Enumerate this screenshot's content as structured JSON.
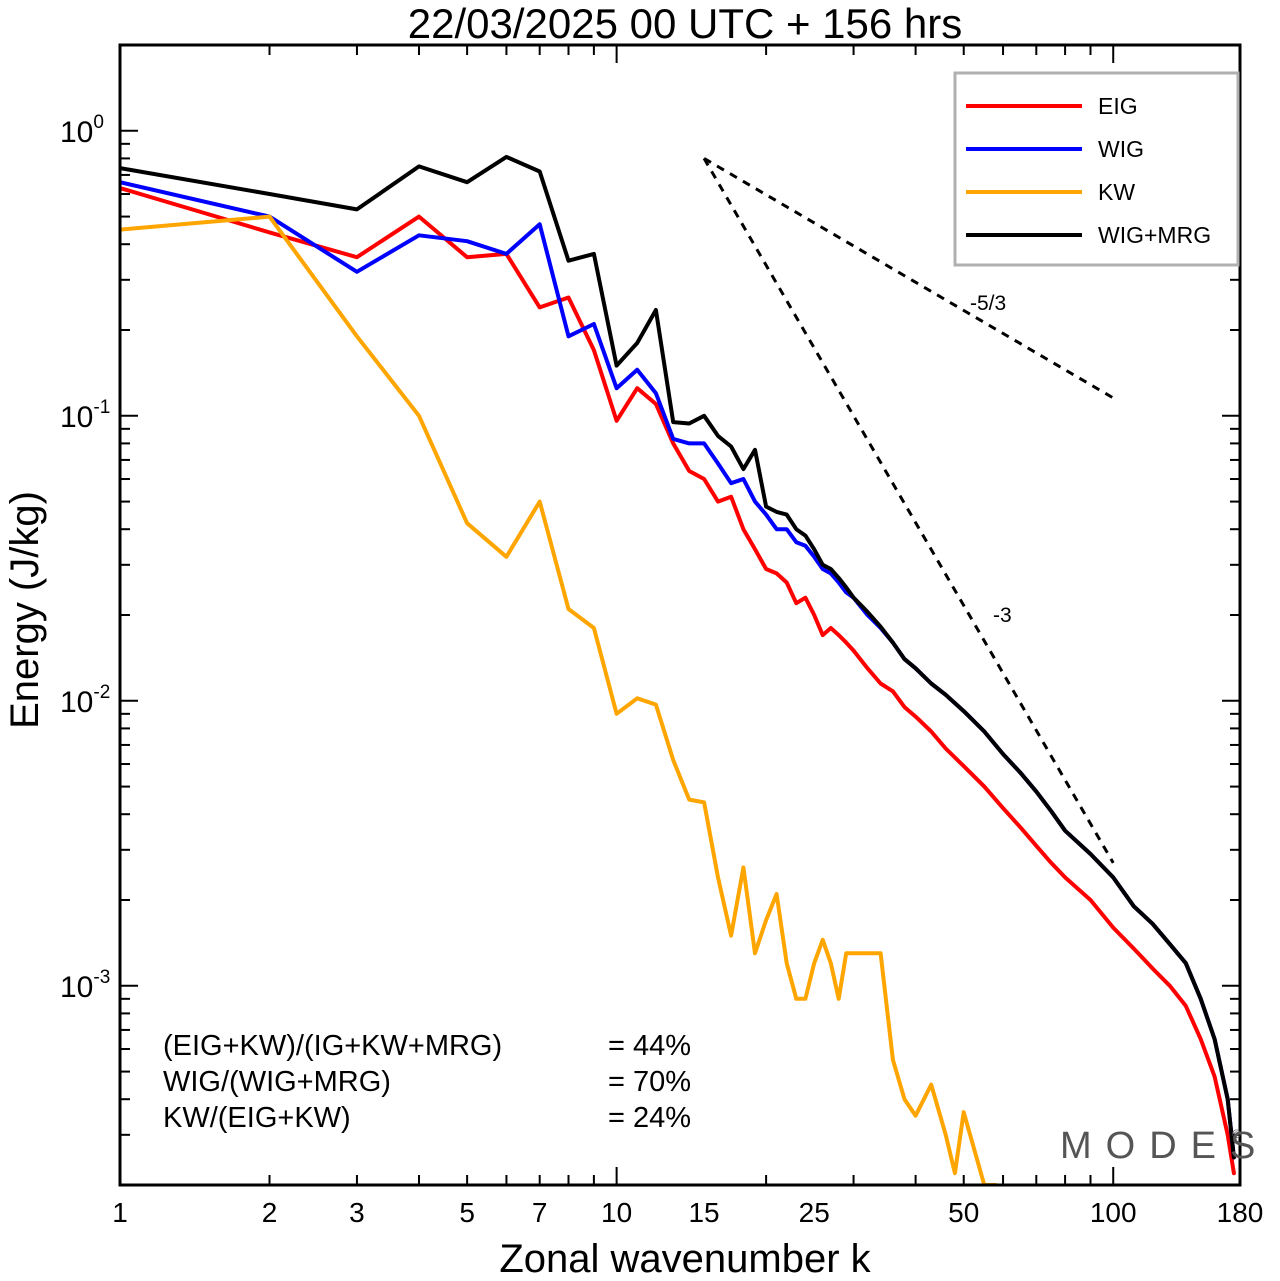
{
  "chart_data": {
    "type": "line",
    "title": "22/03/2025  00 UTC  + 156 hrs",
    "xlabel": "Zonal wavenumber k",
    "ylabel": "Energy (J/kg)",
    "x_scale": "log",
    "y_scale": "log",
    "xlim": [
      1,
      180
    ],
    "ylim": [
      0.0002,
      2
    ],
    "grid": false,
    "legend_position": "top-right",
    "x_ticks": [
      {
        "value": 1,
        "label": "1"
      },
      {
        "value": 2,
        "label": "2"
      },
      {
        "value": 3,
        "label": "3"
      },
      {
        "value": 5,
        "label": "5"
      },
      {
        "value": 7,
        "label": "7"
      },
      {
        "value": 10,
        "label": "10"
      },
      {
        "value": 15,
        "label": "15"
      },
      {
        "value": 25,
        "label": "25"
      },
      {
        "value": 50,
        "label": "50"
      },
      {
        "value": 100,
        "label": "100"
      },
      {
        "value": 180,
        "label": "180"
      }
    ],
    "y_ticks": [
      {
        "value": 1,
        "base": "10",
        "exp": "0"
      },
      {
        "value": 0.1,
        "base": "10",
        "exp": "-1"
      },
      {
        "value": 0.01,
        "base": "10",
        "exp": "-2"
      },
      {
        "value": 0.001,
        "base": "10",
        "exp": "-3"
      }
    ],
    "series": [
      {
        "name": "EIG",
        "color": "#ff0000",
        "x": [
          1,
          2,
          3,
          4,
          5,
          6,
          7,
          8,
          9,
          10,
          11,
          12,
          13,
          14,
          15,
          16,
          17,
          18,
          19,
          20,
          21,
          22,
          23,
          24,
          25,
          26,
          27,
          28,
          29,
          30,
          32,
          34,
          36,
          38,
          40,
          43,
          46,
          50,
          55,
          60,
          65,
          70,
          75,
          80,
          90,
          100,
          110,
          120,
          130,
          140,
          150,
          160,
          170,
          175
        ],
        "y": [
          0.63,
          0.44,
          0.36,
          0.5,
          0.36,
          0.37,
          0.24,
          0.26,
          0.17,
          0.096,
          0.125,
          0.11,
          0.08,
          0.064,
          0.06,
          0.05,
          0.052,
          0.04,
          0.034,
          0.029,
          0.028,
          0.026,
          0.022,
          0.023,
          0.02,
          0.017,
          0.018,
          0.017,
          0.016,
          0.015,
          0.013,
          0.0115,
          0.0108,
          0.0095,
          0.0088,
          0.0078,
          0.0068,
          0.0059,
          0.005,
          0.0042,
          0.0036,
          0.0031,
          0.0027,
          0.0024,
          0.002,
          0.0016,
          0.00135,
          0.00115,
          0.001,
          0.00085,
          0.00065,
          0.00048,
          0.0003,
          0.00022
        ]
      },
      {
        "name": "WIG",
        "color": "#0000ff",
        "x": [
          1,
          2,
          3,
          4,
          5,
          6,
          7,
          8,
          9,
          10,
          11,
          12,
          13,
          14,
          15,
          16,
          17,
          18,
          19,
          20,
          21,
          22,
          23,
          24,
          25,
          26,
          27,
          28,
          29,
          30,
          32,
          34,
          36,
          38,
          40,
          43,
          46,
          50,
          55,
          60,
          65,
          70,
          75,
          80,
          90,
          100,
          110,
          120,
          130,
          140,
          150,
          160,
          170,
          175
        ],
        "y": [
          0.66,
          0.5,
          0.32,
          0.43,
          0.41,
          0.37,
          0.47,
          0.19,
          0.21,
          0.125,
          0.145,
          0.12,
          0.083,
          0.08,
          0.08,
          0.068,
          0.058,
          0.06,
          0.05,
          0.045,
          0.04,
          0.04,
          0.036,
          0.035,
          0.032,
          0.029,
          0.028,
          0.026,
          0.024,
          0.023,
          0.02,
          0.018,
          0.016,
          0.014,
          0.013,
          0.0115,
          0.0105,
          0.0092,
          0.0078,
          0.0065,
          0.0056,
          0.0048,
          0.0041,
          0.0035,
          0.0029,
          0.0024,
          0.0019,
          0.00165,
          0.0014,
          0.0012,
          0.0009,
          0.00065,
          0.0004,
          0.00025
        ]
      },
      {
        "name": "KW",
        "color": "#ffa500",
        "x": [
          1,
          2,
          3,
          4,
          5,
          6,
          7,
          8,
          9,
          10,
          11,
          12,
          13,
          14,
          15,
          16,
          17,
          18,
          19,
          20,
          21,
          22,
          23,
          24,
          25,
          26,
          27,
          28,
          29,
          30,
          32,
          34,
          36,
          38,
          40,
          43,
          46,
          48,
          50,
          55,
          58
        ],
        "y": [
          0.45,
          0.5,
          0.19,
          0.1,
          0.042,
          0.032,
          0.05,
          0.021,
          0.018,
          0.009,
          0.0102,
          0.0097,
          0.0062,
          0.0045,
          0.0044,
          0.0024,
          0.0015,
          0.0026,
          0.0013,
          0.0017,
          0.0021,
          0.0012,
          0.0009,
          0.0009,
          0.0012,
          0.00145,
          0.0012,
          0.0009,
          0.0013,
          0.0013,
          0.0013,
          0.0013,
          0.00055,
          0.0004,
          0.00035,
          0.00045,
          0.0003,
          0.00022,
          0.00036,
          0.0002,
          0.0002
        ]
      },
      {
        "name": "WIG+MRG",
        "color": "#000000",
        "x": [
          1,
          2,
          3,
          4,
          5,
          6,
          7,
          8,
          9,
          10,
          11,
          12,
          13,
          14,
          15,
          16,
          17,
          18,
          19,
          20,
          21,
          22,
          23,
          24,
          25,
          26,
          27,
          28,
          29,
          30,
          32,
          34,
          36,
          38,
          40,
          43,
          46,
          50,
          55,
          60,
          65,
          70,
          75,
          80,
          90,
          100,
          110,
          120,
          130,
          140,
          150,
          160,
          170,
          175
        ],
        "y": [
          0.74,
          0.6,
          0.53,
          0.75,
          0.66,
          0.81,
          0.72,
          0.35,
          0.37,
          0.15,
          0.18,
          0.235,
          0.095,
          0.094,
          0.1,
          0.085,
          0.078,
          0.065,
          0.076,
          0.048,
          0.046,
          0.045,
          0.04,
          0.038,
          0.034,
          0.03,
          0.029,
          0.027,
          0.025,
          0.023,
          0.0205,
          0.0182,
          0.016,
          0.014,
          0.013,
          0.0115,
          0.0105,
          0.0092,
          0.0078,
          0.0065,
          0.0056,
          0.0048,
          0.0041,
          0.0035,
          0.0029,
          0.0024,
          0.0019,
          0.00165,
          0.0014,
          0.0012,
          0.0009,
          0.00065,
          0.0004,
          0.00025
        ]
      }
    ],
    "reference_lines": [
      {
        "label": "-5/3",
        "slope": -1.6667,
        "x": [
          15,
          100
        ],
        "y": [
          0.8,
          0.1155
        ],
        "style": "dashed",
        "color": "#000000"
      },
      {
        "label": "-3",
        "slope": -3,
        "x": [
          15,
          100
        ],
        "y": [
          0.8,
          0.0027
        ],
        "style": "dashed",
        "color": "#000000"
      }
    ],
    "annotations": [
      {
        "text": "(EIG+KW)/(IG+KW+MRG)",
        "value": "= 44%"
      },
      {
        "text": "WIG/(WIG+MRG)",
        "value": "= 70%"
      },
      {
        "text": "KW/(EIG+KW)",
        "value": "= 24%"
      }
    ],
    "watermark": "MODES",
    "watermark_symbol": "©"
  }
}
